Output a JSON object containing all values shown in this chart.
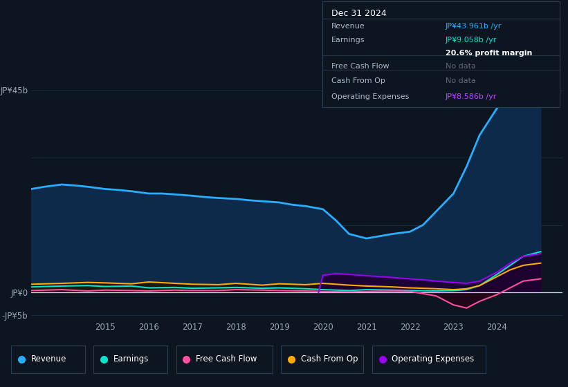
{
  "bg_color": "#0d1520",
  "plot_bg_color": "#0d1520",
  "ylim": [
    -6,
    50
  ],
  "ytick_positions": [
    -5,
    0,
    45
  ],
  "ytick_labels": [
    "-JP¥5b",
    "JP¥0",
    "JP¥45b"
  ],
  "xlim_start": 2013.3,
  "xlim_end": 2025.5,
  "xtick_years": [
    2015,
    2016,
    2017,
    2018,
    2019,
    2020,
    2021,
    2022,
    2023,
    2024
  ],
  "grid_color": "#1a2d45",
  "zero_line_color": "#ccddee",
  "series": {
    "revenue": {
      "color": "#29aeff",
      "fill_color": "#0d2a4a",
      "linewidth": 2.0
    },
    "earnings": {
      "color": "#00e5cc",
      "fill_color": "#003a35",
      "linewidth": 1.5
    },
    "free_cash_flow": {
      "color": "#ff4fa0",
      "fill_color": "#2a0018",
      "linewidth": 1.5
    },
    "cash_from_op": {
      "color": "#ffaa00",
      "fill_color": "#1e1400",
      "linewidth": 1.5
    },
    "operating_expenses": {
      "color": "#9900ee",
      "fill_color": "#1e0035",
      "linewidth": 1.5
    }
  },
  "revenue_x": [
    2013.3,
    2013.6,
    2014.0,
    2014.3,
    2014.6,
    2015.0,
    2015.3,
    2015.6,
    2016.0,
    2016.3,
    2016.6,
    2017.0,
    2017.3,
    2017.6,
    2018.0,
    2018.3,
    2018.6,
    2019.0,
    2019.3,
    2019.6,
    2020.0,
    2020.3,
    2020.6,
    2021.0,
    2021.3,
    2021.6,
    2022.0,
    2022.3,
    2022.6,
    2023.0,
    2023.3,
    2023.6,
    2024.0,
    2024.3,
    2024.6,
    2025.0
  ],
  "revenue_y": [
    23,
    23.5,
    24,
    23.8,
    23.5,
    23,
    22.8,
    22.5,
    22,
    22,
    21.8,
    21.5,
    21.2,
    21,
    20.8,
    20.5,
    20.3,
    20,
    19.5,
    19.2,
    18.5,
    16,
    13,
    12,
    12.5,
    13,
    13.5,
    15,
    18,
    22,
    28,
    35,
    41,
    44,
    45,
    43.961
  ],
  "earnings_x": [
    2013.3,
    2014.0,
    2014.6,
    2015.0,
    2015.6,
    2016.0,
    2016.6,
    2017.0,
    2017.6,
    2018.0,
    2018.6,
    2019.0,
    2019.6,
    2020.0,
    2020.6,
    2021.0,
    2021.6,
    2022.0,
    2022.6,
    2023.0,
    2023.3,
    2023.6,
    2024.0,
    2024.3,
    2024.6,
    2025.0
  ],
  "earnings_y": [
    1.2,
    1.4,
    1.5,
    1.3,
    1.4,
    1.0,
    1.1,
    0.9,
    1.0,
    1.1,
    0.9,
    1.0,
    0.8,
    0.6,
    0.4,
    0.6,
    0.5,
    0.4,
    0.3,
    0.4,
    0.6,
    1.5,
    4.0,
    6.0,
    8.0,
    9.058
  ],
  "free_cash_flow_x": [
    2013.3,
    2014.0,
    2014.6,
    2015.0,
    2015.6,
    2016.0,
    2016.6,
    2017.0,
    2017.6,
    2018.0,
    2018.6,
    2019.0,
    2019.6,
    2020.0,
    2020.6,
    2021.0,
    2021.6,
    2022.0,
    2022.3,
    2022.6,
    2023.0,
    2023.3,
    2023.6,
    2024.0,
    2024.3,
    2024.6,
    2025.0
  ],
  "free_cash_flow_y": [
    0.4,
    0.6,
    0.3,
    0.5,
    0.4,
    0.3,
    0.5,
    0.4,
    0.4,
    0.6,
    0.5,
    0.4,
    0.3,
    0.2,
    0.1,
    0.2,
    0.3,
    0.2,
    -0.3,
    -0.8,
    -2.8,
    -3.5,
    -2.0,
    -0.5,
    1.0,
    2.5,
    3.0
  ],
  "cash_from_op_x": [
    2013.3,
    2014.0,
    2014.6,
    2015.0,
    2015.6,
    2016.0,
    2016.6,
    2017.0,
    2017.6,
    2018.0,
    2018.6,
    2019.0,
    2019.6,
    2020.0,
    2020.6,
    2021.0,
    2021.6,
    2022.0,
    2022.6,
    2023.0,
    2023.3,
    2023.6,
    2024.0,
    2024.3,
    2024.6,
    2025.0
  ],
  "cash_from_op_y": [
    1.8,
    2.0,
    2.2,
    2.1,
    1.9,
    2.3,
    2.0,
    1.8,
    1.7,
    2.0,
    1.6,
    1.9,
    1.7,
    2.0,
    1.6,
    1.4,
    1.2,
    1.0,
    0.8,
    0.6,
    0.8,
    1.5,
    3.5,
    5.0,
    6.0,
    6.5
  ],
  "op_expenses_x": [
    2019.9,
    2020.0,
    2020.3,
    2020.6,
    2021.0,
    2021.3,
    2021.6,
    2022.0,
    2022.3,
    2022.6,
    2023.0,
    2023.3,
    2023.6,
    2024.0,
    2024.3,
    2024.6,
    2025.0
  ],
  "op_expenses_y": [
    0.0,
    3.8,
    4.2,
    4.0,
    3.7,
    3.5,
    3.3,
    3.0,
    2.8,
    2.5,
    2.2,
    2.0,
    2.5,
    4.5,
    6.5,
    8.0,
    8.586
  ],
  "legend_items": [
    {
      "label": "Revenue",
      "color": "#29aeff"
    },
    {
      "label": "Earnings",
      "color": "#00e5cc"
    },
    {
      "label": "Free Cash Flow",
      "color": "#ff4fa0"
    },
    {
      "label": "Cash From Op",
      "color": "#ffaa00"
    },
    {
      "label": "Operating Expenses",
      "color": "#9900ee"
    }
  ],
  "tooltip": {
    "date": "Dec 31 2024",
    "rows": [
      {
        "label": "Revenue",
        "value": "JP¥43.961b /yr",
        "value_color": "#29aeff",
        "label_color": "#aabbcc",
        "separator_after": true
      },
      {
        "label": "Earnings",
        "value": "JP¥9.058b /yr",
        "value_color": "#00e5cc",
        "label_color": "#aabbcc",
        "separator_after": false
      },
      {
        "label": "",
        "value": "20.6% profit margin",
        "value_color": "#ffffff",
        "label_color": "#aabbcc",
        "bold_value": true,
        "separator_after": true
      },
      {
        "label": "Free Cash Flow",
        "value": "No data",
        "value_color": "#666677",
        "label_color": "#aabbcc",
        "separator_after": true
      },
      {
        "label": "Cash From Op",
        "value": "No data",
        "value_color": "#666677",
        "label_color": "#aabbcc",
        "separator_after": true
      },
      {
        "label": "Operating Expenses",
        "value": "JP¥8.586b /yr",
        "value_color": "#bb44ff",
        "label_color": "#aabbcc",
        "separator_after": false
      }
    ]
  }
}
